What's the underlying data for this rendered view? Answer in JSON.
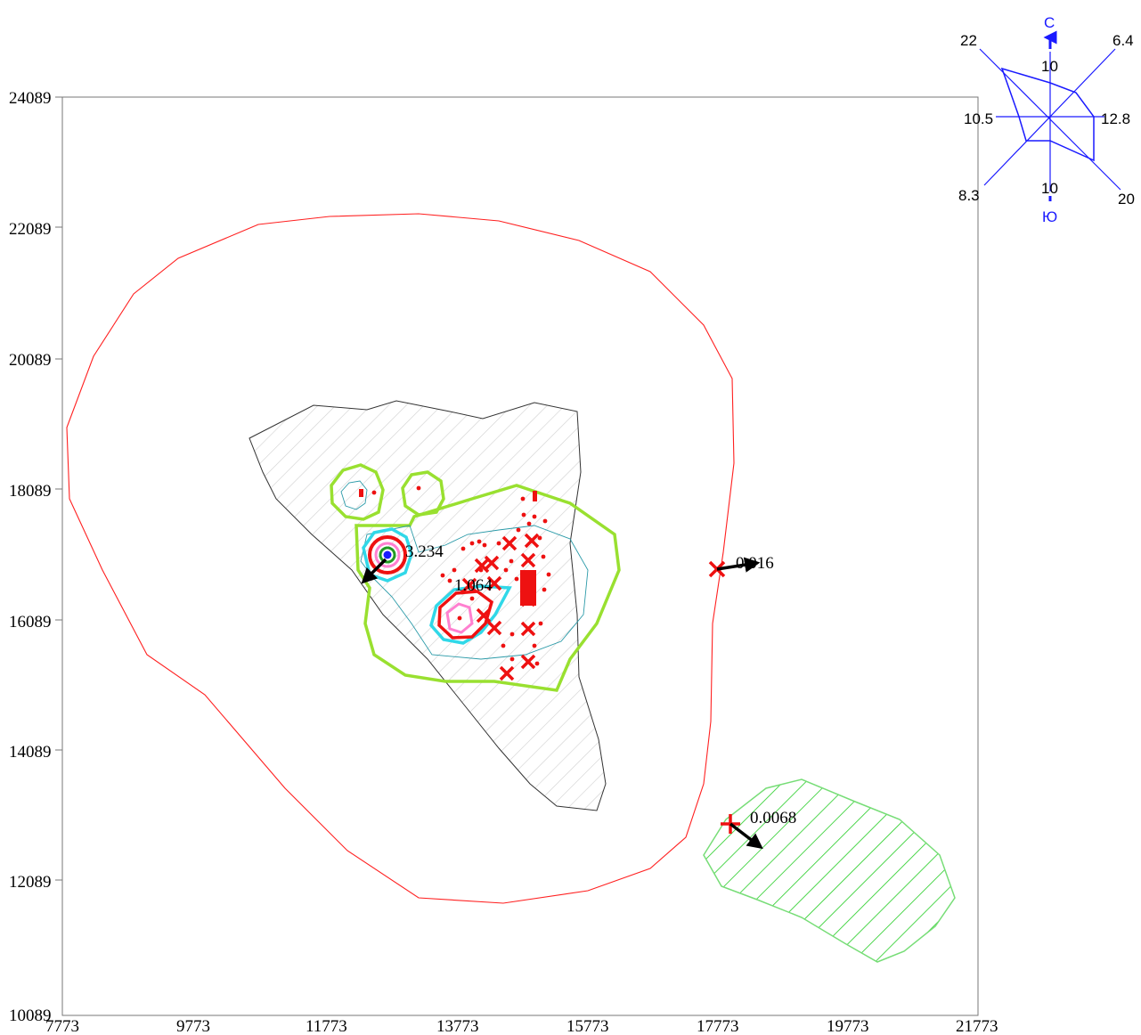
{
  "axes": {
    "x_ticks": [
      "7773",
      "9773",
      "11773",
      "13773",
      "15773",
      "17773",
      "19773",
      "21773"
    ],
    "y_ticks": [
      "24089",
      "22089",
      "20089",
      "18089",
      "16089",
      "14089",
      "12089",
      "10089"
    ]
  },
  "annotations": [
    "3.234",
    "1.064",
    "0.016",
    "0.0068"
  ],
  "wind_rose": {
    "north": "С",
    "south": "Ю",
    "values": {
      "nw": "22",
      "n": "10",
      "ne": "6.4",
      "w": "10.5",
      "e": "12.8",
      "sw": "8.3",
      "s": "10",
      "se": "20"
    }
  },
  "colors": {
    "outer_contour": "#ff2020",
    "inner_contour": "#99e030",
    "cyan_contour": "#30d8e8",
    "pink_contour": "#ff80d0",
    "marker": "#ee1111",
    "wind_rose": "#1a1aff",
    "hatch_zone": "#22cc22"
  }
}
